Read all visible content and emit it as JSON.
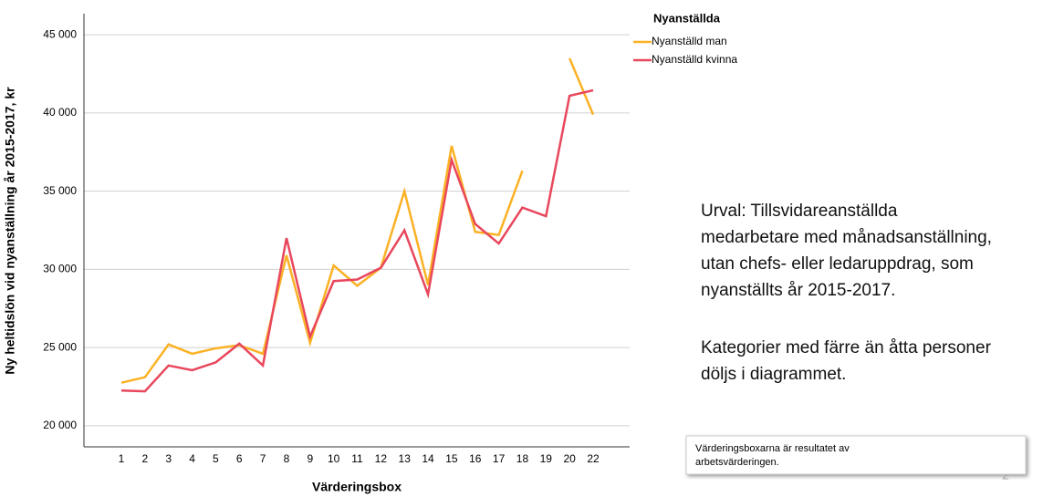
{
  "chart_data": {
    "type": "line",
    "y_label": "Ny heltidslön vid nyanställning år 2015-2017, kr",
    "x_label": "Värderingsbox",
    "categories": [
      "1",
      "2",
      "3",
      "4",
      "5",
      "6",
      "7",
      "8",
      "9",
      "10",
      "11",
      "12",
      "13",
      "14",
      "15",
      "16",
      "17",
      "18",
      "19",
      "20",
      "22"
    ],
    "series": [
      {
        "name": "Nyanställd man",
        "color": "#fbb124",
        "values": [
          22750,
          23100,
          25200,
          24600,
          24950,
          25150,
          24600,
          30900,
          25300,
          30250,
          28950,
          30100,
          35000,
          29000,
          37900,
          32400,
          32200,
          36300,
          null,
          43500,
          39900
        ]
      },
      {
        "name": "Nyanställd kvinna",
        "color": "#e8475c",
        "values": [
          22250,
          22200,
          23850,
          23550,
          24050,
          25250,
          23850,
          32000,
          25700,
          29250,
          29350,
          30100,
          32500,
          28400,
          37000,
          32900,
          31650,
          33950,
          33400,
          41100,
          41450
        ]
      }
    ],
    "legend_title": "Nyanställda",
    "ylim": [
      18650,
      46350
    ],
    "yticks": [
      {
        "value": 20000,
        "label": "20 000"
      },
      {
        "value": 25000,
        "label": "25 000"
      },
      {
        "value": 30000,
        "label": "30 000"
      },
      {
        "value": 35000,
        "label": "35 000"
      },
      {
        "value": 40000,
        "label": "40 000"
      },
      {
        "value": 45000,
        "label": "45 000"
      }
    ],
    "grid": true
  },
  "notes": {
    "urval": [
      "Urval: Tillsvidareanställda",
      "medarbetare med månadsanställning,",
      "utan chefs- eller ledaruppdrag, som",
      "nyanställts år 2015-2017."
    ],
    "kategorier": [
      "Kategorier med färre än åtta personer",
      "döljs i diagrammet."
    ],
    "box": [
      "Värderingsboxarna är resultatet av",
      "arbetsvärderingen."
    ],
    "page": "2"
  }
}
